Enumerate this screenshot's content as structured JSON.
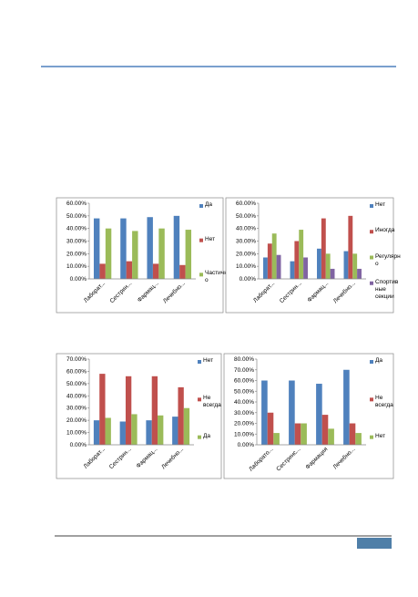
{
  "chart_data": [
    {
      "type": "bar",
      "legend": "right",
      "categories": [
        "Лаборат...",
        "Сестрин...",
        "Фармац...",
        "Лечебно..."
      ],
      "ylim": [
        0,
        60
      ],
      "yticks": [
        {
          "value": 0,
          "label": "0.00%"
        },
        {
          "value": 10,
          "label": "10.00%"
        },
        {
          "value": 20,
          "label": "20.00%"
        },
        {
          "value": 30,
          "label": "30.00%"
        },
        {
          "value": 40,
          "label": "40.00%"
        },
        {
          "value": 50,
          "label": "50.00%"
        },
        {
          "value": 60,
          "label": "60.00%"
        }
      ],
      "series": [
        {
          "name": "Да",
          "color": "#4f81bd",
          "values": [
            48,
            48,
            49,
            50
          ]
        },
        {
          "name": "Нет",
          "color": "#c0504d",
          "values": [
            12,
            14,
            12,
            11
          ]
        },
        {
          "name": "Частично",
          "color": "#9bbb59",
          "values": [
            40,
            38,
            40,
            39
          ]
        }
      ]
    },
    {
      "type": "bar",
      "legend": "right",
      "categories": [
        "Лаборат...",
        "Сестрин...",
        "Фармац...",
        "Лечебно..."
      ],
      "ylim": [
        0,
        60
      ],
      "yticks": [
        {
          "value": 0,
          "label": "0.00%"
        },
        {
          "value": 10,
          "label": "10.00%"
        },
        {
          "value": 20,
          "label": "20.00%"
        },
        {
          "value": 30,
          "label": "30.00%"
        },
        {
          "value": 40,
          "label": "40.00%"
        },
        {
          "value": 50,
          "label": "50.00%"
        },
        {
          "value": 60,
          "label": "60.00%"
        }
      ],
      "series": [
        {
          "name": "Нет",
          "color": "#4f81bd",
          "values": [
            17,
            14,
            24,
            22
          ]
        },
        {
          "name": "Иногда",
          "color": "#c0504d",
          "values": [
            28,
            30,
            48,
            50
          ]
        },
        {
          "name": "Регулярно",
          "color": "#9bbb59",
          "values": [
            36,
            39,
            20,
            20
          ]
        },
        {
          "name": "Спортивные секции",
          "color": "#8064a2",
          "values": [
            19,
            17,
            8,
            8
          ]
        }
      ]
    },
    {
      "type": "bar",
      "legend": "right",
      "categories": [
        "Лаборат...",
        "Сестрин...",
        "Фармац...",
        "Лечебно..."
      ],
      "ylim": [
        0,
        70
      ],
      "yticks": [
        {
          "value": 0,
          "label": "0.00%"
        },
        {
          "value": 10,
          "label": "10.00%"
        },
        {
          "value": 20,
          "label": "20.00%"
        },
        {
          "value": 30,
          "label": "30.00%"
        },
        {
          "value": 40,
          "label": "40.00%"
        },
        {
          "value": 50,
          "label": "50.00%"
        },
        {
          "value": 60,
          "label": "60.00%"
        },
        {
          "value": 70,
          "label": "70.00%"
        }
      ],
      "series": [
        {
          "name": "Нет",
          "color": "#4f81bd",
          "values": [
            20,
            19,
            20,
            23
          ]
        },
        {
          "name": "Не всегда",
          "color": "#c0504d",
          "values": [
            58,
            56,
            56,
            47
          ]
        },
        {
          "name": "Да",
          "color": "#9bbb59",
          "values": [
            22,
            25,
            24,
            30
          ]
        }
      ]
    },
    {
      "type": "bar",
      "legend": "right",
      "categories": [
        "Лаборато...",
        "Сестринс...",
        "Фармация",
        "Лечебно..."
      ],
      "ylim": [
        0,
        80
      ],
      "yticks": [
        {
          "value": 0,
          "label": "0.00%"
        },
        {
          "value": 10,
          "label": "10.00%"
        },
        {
          "value": 20,
          "label": "20.00%"
        },
        {
          "value": 30,
          "label": "30.00%"
        },
        {
          "value": 40,
          "label": "40.00%"
        },
        {
          "value": 50,
          "label": "50.00%"
        },
        {
          "value": 60,
          "label": "60.00%"
        },
        {
          "value": 70,
          "label": "70.00%"
        },
        {
          "value": 80,
          "label": "80.00%"
        }
      ],
      "series": [
        {
          "name": "Да",
          "color": "#4f81bd",
          "values": [
            60,
            60,
            57,
            70
          ]
        },
        {
          "name": "Не всегда",
          "color": "#c0504d",
          "values": [
            30,
            20,
            28,
            20
          ]
        },
        {
          "name": "Нет",
          "color": "#9bbb59",
          "values": [
            11,
            20,
            15,
            11
          ]
        }
      ]
    }
  ]
}
